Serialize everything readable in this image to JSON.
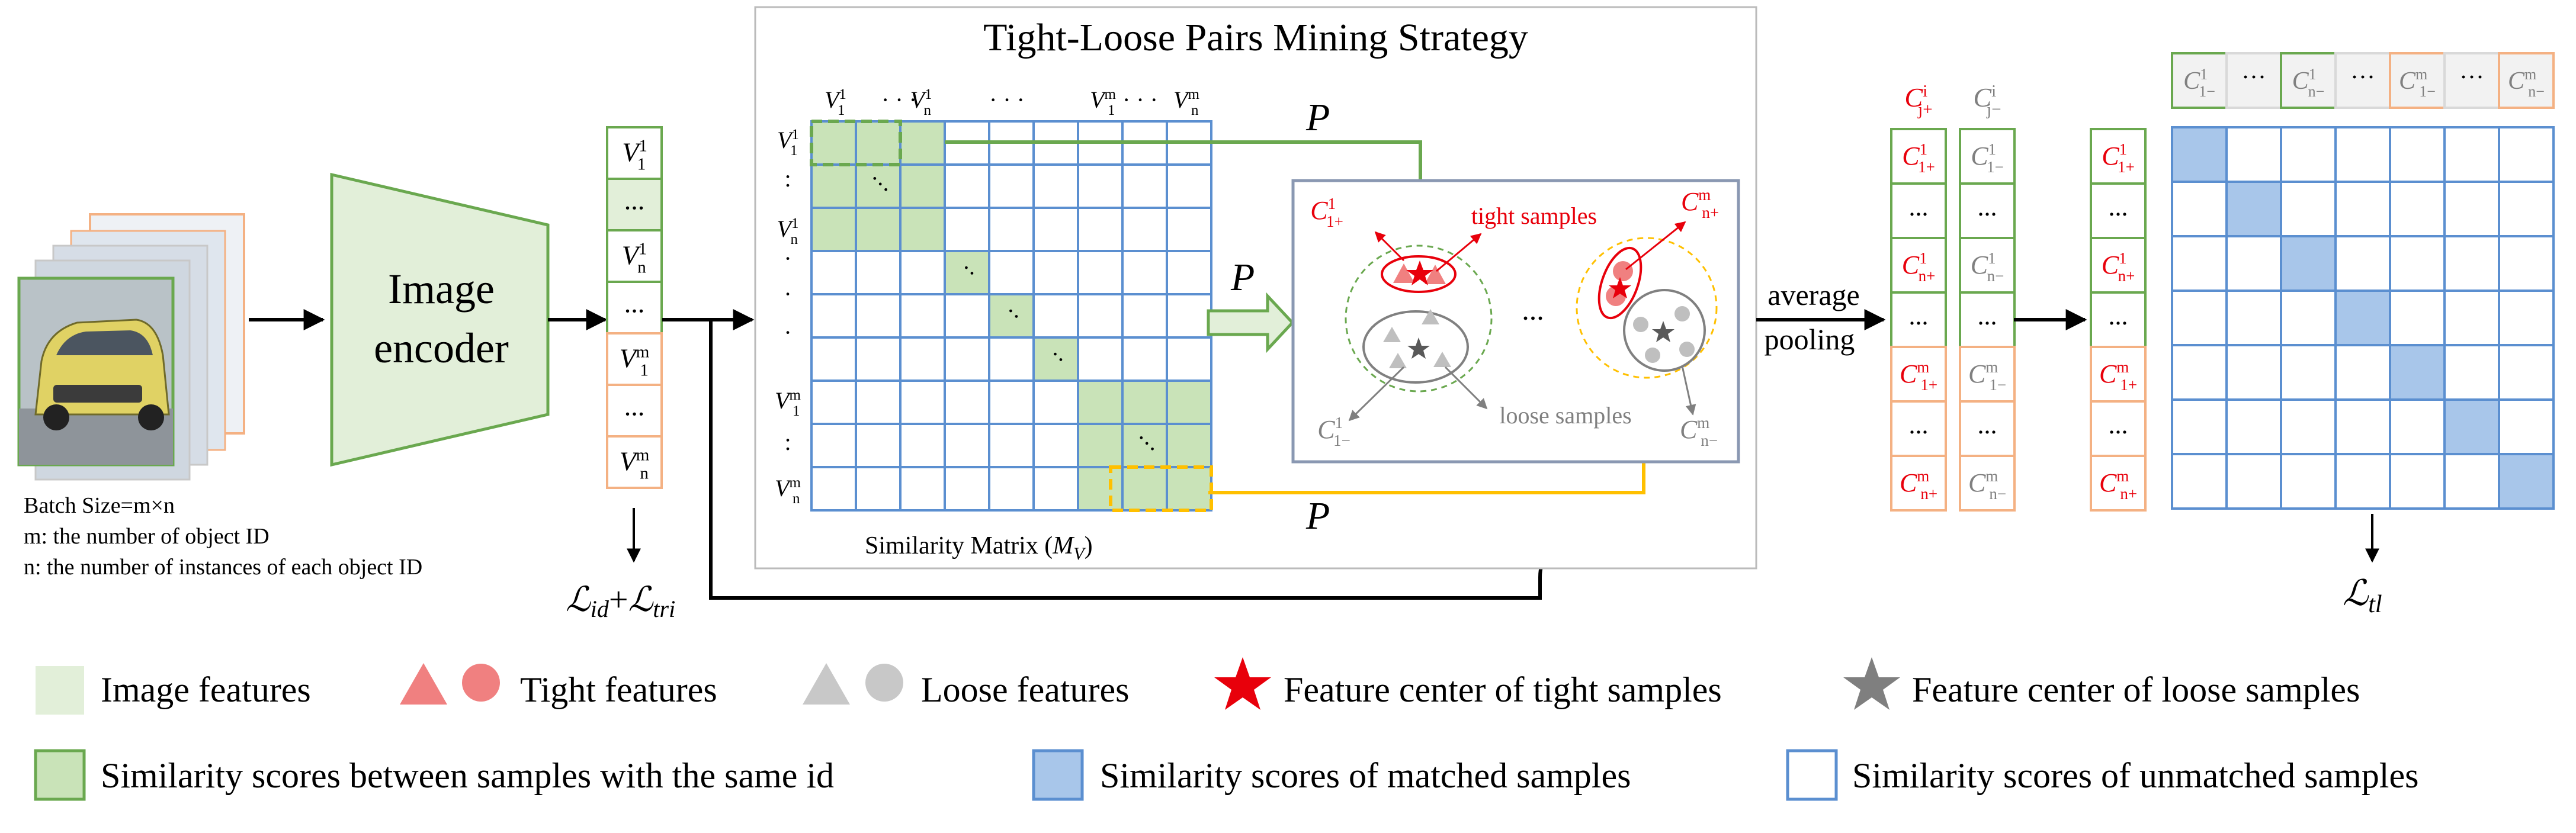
{
  "title": "Tight-Loose Pairs Mining Strategy",
  "batch_info": {
    "line1": "Batch Size=m×n",
    "line2": "m: the number of object ID",
    "line3": "n: the number of instances of each object ID"
  },
  "encoder": {
    "line1": "Image",
    "line2": "encoder"
  },
  "feature_column": {
    "cells": [
      {
        "base": "V",
        "sup": "1",
        "sub": "1"
      },
      {
        "dots": "..."
      },
      {
        "base": "V",
        "sup": "1",
        "sub": "n"
      },
      {
        "dots": "..."
      },
      {
        "base": "V",
        "sup": "m",
        "sub": "1"
      },
      {
        "dots": "..."
      },
      {
        "base": "V",
        "sup": "m",
        "sub": "n"
      }
    ]
  },
  "loss_id": {
    "l1": "ℒ",
    "s1": "id",
    "plus": "+",
    "l2": "ℒ",
    "s2": "tri"
  },
  "matrix": {
    "caption_prefix": "Similarity Matrix (",
    "caption_var": "M",
    "caption_sub": "V",
    "caption_suffix": ")",
    "col_labels": [
      {
        "base": "V",
        "sup": "1",
        "sub": "1"
      },
      {
        "text": "· · ·"
      },
      {
        "base": "V",
        "sup": "1",
        "sub": "n"
      },
      {
        "text": "·   ·   ·"
      },
      {
        "base": "V",
        "sup": "m",
        "sub": "1"
      },
      {
        "text": "· · ·"
      },
      {
        "base": "V",
        "sup": "m",
        "sub": "n"
      }
    ],
    "row_labels": [
      {
        "base": "V",
        "sup": "1",
        "sub": "1"
      },
      {
        "text": ":"
      },
      {
        "base": "V",
        "sup": "1",
        "sub": "n"
      },
      {
        "text": "·"
      },
      {
        "text": "·"
      },
      {
        "text": "·"
      },
      {
        "base": "V",
        "sup": "m",
        "sub": "1"
      },
      {
        "text": ":"
      },
      {
        "base": "V",
        "sup": "m",
        "sub": "n"
      }
    ]
  },
  "arrow_label": "P",
  "cluster_labels": {
    "tight_samples": "tight samples",
    "loose_samples": "loose samples",
    "ellipsis": "...",
    "c_tight_1": {
      "base": "C",
      "sup": "1",
      "sub": "1+"
    },
    "c_tight_m": {
      "base": "C",
      "sup": "m",
      "sub": "n+"
    },
    "c_loose_1": {
      "base": "C",
      "sup": "1",
      "sub": "1−"
    },
    "c_loose_m": {
      "base": "C",
      "sup": "m",
      "sub": "n−"
    }
  },
  "pooling": {
    "line1": "average",
    "line2": "pooling"
  },
  "centers": {
    "tight_header": {
      "base": "C",
      "sup": "i",
      "sub": "j+"
    },
    "loose_header": {
      "base": "C",
      "sup": "i",
      "sub": "j−"
    },
    "tight": [
      {
        "base": "C",
        "sup": "1",
        "sub": "1+"
      },
      {
        "dots": "..."
      },
      {
        "base": "C",
        "sup": "1",
        "sub": "n+"
      },
      {
        "dots": "..."
      },
      {
        "base": "C",
        "sup": "m",
        "sub": "1+"
      },
      {
        "dots": "..."
      },
      {
        "base": "C",
        "sup": "m",
        "sub": "n+"
      }
    ],
    "loose": [
      {
        "base": "C",
        "sup": "1",
        "sub": "1−"
      },
      {
        "dots": "..."
      },
      {
        "base": "C",
        "sup": "1",
        "sub": "n−"
      },
      {
        "dots": "..."
      },
      {
        "base": "C",
        "sup": "m",
        "sub": "1−"
      },
      {
        "dots": "..."
      },
      {
        "base": "C",
        "sup": "m",
        "sub": "n−"
      }
    ]
  },
  "final_matrix": {
    "top_labels": [
      {
        "base": "C",
        "sup": "1",
        "sub": "1−"
      },
      {
        "dots": "···"
      },
      {
        "base": "C",
        "sup": "1",
        "sub": "n−"
      },
      {
        "dots": "···"
      },
      {
        "base": "C",
        "sup": "m",
        "sub": "1−"
      },
      {
        "dots": "···"
      },
      {
        "base": "C",
        "sup": "m",
        "sub": "n−"
      }
    ]
  },
  "loss_tl": {
    "l": "ℒ",
    "s": "tl"
  },
  "legend": {
    "image_features": "Image features",
    "tight_features": "Tight features",
    "loose_features": "Loose features",
    "tight_center": "Feature center of tight samples",
    "loose_center": "Feature center of loose samples",
    "same_id": "Similarity scores between samples with the same id",
    "matched": "Similarity scores of matched samples",
    "unmatched": "Similarity scores of unmatched samples"
  },
  "colors": {
    "green_border": "#6aa84f",
    "green_fill": "#c9e3b8",
    "green_light": "#e2efd9",
    "blue_border": "#5b8fd0",
    "blue_fill": "#a8c6ea",
    "orange_border": "#f4b183",
    "red": "#e8000b",
    "gray": "#808080",
    "yellow": "#ffc000"
  }
}
